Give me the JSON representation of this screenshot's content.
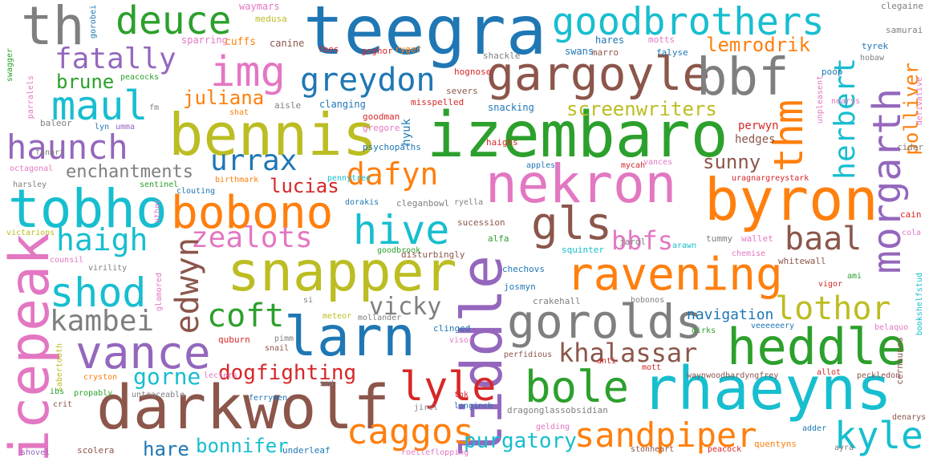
{
  "palette": [
    "#1f77b4",
    "#ff7f0e",
    "#2ca02c",
    "#d62728",
    "#9467bd",
    "#8c564b",
    "#e377c2",
    "#7f7f7f",
    "#bcbd22",
    "#17becf"
  ],
  "words": [
    {
      "text": "teegra",
      "color": "#1f77b4",
      "weight": 1.0
    },
    {
      "text": "izembaro",
      "color": "#2ca02c",
      "weight": 0.9
    },
    {
      "text": "bennis",
      "color": "#bcbd22",
      "weight": 0.9
    },
    {
      "text": "goodbrothers",
      "color": "#17becf",
      "weight": 0.8
    },
    {
      "text": "nekron",
      "color": "#e377c2",
      "weight": 0.85
    },
    {
      "text": "byron",
      "color": "#ff7f0e",
      "weight": 0.85
    },
    {
      "text": "rhaeyns",
      "color": "#17becf",
      "weight": 0.85
    },
    {
      "text": "darkwolf",
      "color": "#8c564b",
      "weight": 0.85
    },
    {
      "text": "snapper",
      "color": "#bcbd22",
      "weight": 0.85
    },
    {
      "text": "larn",
      "color": "#1f77b4",
      "weight": 0.8
    },
    {
      "text": "liddle",
      "color": "#9467bd",
      "weight": 0.8
    },
    {
      "text": "icepeak",
      "color": "#e377c2",
      "weight": 0.8
    },
    {
      "text": "tobho",
      "color": "#17becf",
      "weight": 0.75
    },
    {
      "text": "gargoyle",
      "color": "#8c564b",
      "weight": 0.7
    },
    {
      "text": "bbf",
      "color": "#7f7f7f",
      "weight": 0.75
    },
    {
      "text": "th",
      "color": "#7f7f7f",
      "weight": 0.75
    },
    {
      "text": "heddle",
      "color": "#2ca02c",
      "weight": 0.75
    },
    {
      "text": "ravening",
      "color": "#ff7f0e",
      "weight": 0.75
    },
    {
      "text": "gorolds",
      "color": "#7f7f7f",
      "weight": 0.75
    },
    {
      "text": "bobono",
      "color": "#ff7f0e",
      "weight": 0.7
    },
    {
      "text": "vance",
      "color": "#9467bd",
      "weight": 0.7
    },
    {
      "text": "bole",
      "color": "#2ca02c",
      "weight": 0.7
    },
    {
      "text": "gls",
      "color": "#8c564b",
      "weight": 0.7
    },
    {
      "text": "morgarth",
      "color": "#9467bd",
      "weight": 0.7
    },
    {
      "text": "img",
      "color": "#e377c2",
      "weight": 0.65
    },
    {
      "text": "maul",
      "color": "#17becf",
      "weight": 0.65
    },
    {
      "text": "shod",
      "color": "#17becf",
      "weight": 0.65
    },
    {
      "text": "deuce",
      "color": "#2ca02c",
      "weight": 0.6
    },
    {
      "text": "greydon",
      "color": "#1f77b4",
      "weight": 0.55
    },
    {
      "text": "haunch",
      "color": "#9467bd",
      "weight": 0.55
    },
    {
      "text": "thm",
      "color": "#ff7f0e",
      "weight": 0.6
    },
    {
      "text": "hive",
      "color": "#17becf",
      "weight": 0.6
    },
    {
      "text": "caggos",
      "color": "#ff7f0e",
      "weight": 0.55
    },
    {
      "text": "lyle",
      "color": "#d62728",
      "weight": 0.6
    },
    {
      "text": "sandpiper",
      "color": "#ff7f0e",
      "weight": 0.55
    },
    {
      "text": "kyle",
      "color": "#17becf",
      "weight": 0.55
    },
    {
      "text": "fatally",
      "color": "#9467bd",
      "weight": 0.5
    },
    {
      "text": "dafyn",
      "color": "#ff7f0e",
      "weight": 0.5
    },
    {
      "text": "urrax",
      "color": "#1f77b4",
      "weight": 0.5
    },
    {
      "text": "zealots",
      "color": "#e377c2",
      "weight": 0.5
    },
    {
      "text": "haigh",
      "color": "#17becf",
      "weight": 0.5
    },
    {
      "text": "kambei",
      "color": "#7f7f7f",
      "weight": 0.5
    },
    {
      "text": "coft",
      "color": "#2ca02c",
      "weight": 0.5
    },
    {
      "text": "lothor",
      "color": "#bcbd22",
      "weight": 0.5
    },
    {
      "text": "baal",
      "color": "#8c564b",
      "weight": 0.5
    },
    {
      "text": "edwyn",
      "color": "#8c564b",
      "weight": 0.5
    },
    {
      "text": "herbert",
      "color": "#17becf",
      "weight": 0.5
    },
    {
      "text": "khalassar",
      "color": "#8c564b",
      "weight": 0.45
    },
    {
      "text": "vicky",
      "color": "#7f7f7f",
      "weight": 0.45
    },
    {
      "text": "bbfs",
      "color": "#e377c2",
      "weight": 0.45
    },
    {
      "text": "dogfighting",
      "color": "#d62728",
      "weight": 0.4
    },
    {
      "text": "purgatory",
      "color": "#17becf",
      "weight": 0.4
    },
    {
      "text": "bonnifer",
      "color": "#17becf",
      "weight": 0.4
    },
    {
      "text": "hare",
      "color": "#1f77b4",
      "weight": 0.4
    },
    {
      "text": "gorne",
      "color": "#17becf",
      "weight": 0.4
    },
    {
      "text": "lemrodrik",
      "color": "#ff7f0e",
      "weight": 0.4
    },
    {
      "text": "juliana",
      "color": "#ff7f0e",
      "weight": 0.4
    },
    {
      "text": "brune",
      "color": "#2ca02c",
      "weight": 0.4
    },
    {
      "text": "enchantments",
      "color": "#7f7f7f",
      "weight": 0.4
    },
    {
      "text": "screenwriters",
      "color": "#bcbd22",
      "weight": 0.4
    },
    {
      "text": "lucias",
      "color": "#d62728",
      "weight": 0.4
    },
    {
      "text": "sunny",
      "color": "#8c564b",
      "weight": 0.35
    },
    {
      "text": "polliver",
      "color": "#ff7f0e",
      "weight": 0.35
    },
    {
      "text": "navigation",
      "color": "#1f77b4",
      "weight": 0.35
    },
    {
      "text": "hedges",
      "color": "#8c564b",
      "weight": 0.25
    },
    {
      "text": "perwyn",
      "color": "#d62728",
      "weight": 0.25
    },
    {
      "text": "hyuk",
      "color": "#1f77b4",
      "weight": 0.25
    },
    {
      "text": "waymars",
      "color": "#e377c2",
      "weight": 0.2
    },
    {
      "text": "medusa",
      "color": "#bcbd22",
      "weight": 0.2
    },
    {
      "text": "sparring",
      "color": "#e377c2",
      "weight": 0.2
    },
    {
      "text": "cuffs",
      "color": "#ff7f0e",
      "weight": 0.2
    },
    {
      "text": "canine",
      "color": "#8c564b",
      "weight": 0.2
    },
    {
      "text": "fees",
      "color": "#d62728",
      "weight": 0.2
    },
    {
      "text": "goghor",
      "color": "#d62728",
      "weight": 0.2
    },
    {
      "text": "ryger",
      "color": "#ff7f0e",
      "weight": 0.2
    },
    {
      "text": "hares",
      "color": "#1f77b4",
      "weight": 0.2
    },
    {
      "text": "motts",
      "color": "#e377c2",
      "weight": 0.2
    },
    {
      "text": "swans",
      "color": "#1f77b4",
      "weight": 0.2
    },
    {
      "text": "marro",
      "color": "#8c564b",
      "weight": 0.2
    },
    {
      "text": "falyse",
      "color": "#1f77b4",
      "weight": 0.2
    },
    {
      "text": "shackle",
      "color": "#7f7f7f",
      "weight": 0.2
    },
    {
      "text": "hognose",
      "color": "#d62728",
      "weight": 0.2
    },
    {
      "text": "severs",
      "color": "#8c564b",
      "weight": 0.2
    },
    {
      "text": "misspelled",
      "color": "#d62728",
      "weight": 0.2
    },
    {
      "text": "clanging",
      "color": "#1f77b4",
      "weight": 0.2
    },
    {
      "text": "snacking",
      "color": "#1f77b4",
      "weight": 0.2
    },
    {
      "text": "aisle",
      "color": "#7f7f7f",
      "weight": 0.2
    },
    {
      "text": "shat",
      "color": "#ff7f0e",
      "weight": 0.2
    },
    {
      "text": "goodman",
      "color": "#d62728",
      "weight": 0.2
    },
    {
      "text": "gregore",
      "color": "#e377c2",
      "weight": 0.2
    },
    {
      "text": "psychopaths",
      "color": "#1f77b4",
      "weight": 0.2
    },
    {
      "text": "haighs",
      "color": "#d62728",
      "weight": 0.2
    },
    {
      "text": "apples",
      "color": "#1f77b4",
      "weight": 0.2
    },
    {
      "text": "mycah",
      "color": "#d62728",
      "weight": 0.2
    },
    {
      "text": "vances",
      "color": "#e377c2",
      "weight": 0.2
    },
    {
      "text": "clegaine",
      "color": "#7f7f7f",
      "weight": 0.2
    },
    {
      "text": "samurai",
      "color": "#7f7f7f",
      "weight": 0.2
    },
    {
      "text": "tyrek",
      "color": "#1f77b4",
      "weight": 0.2
    },
    {
      "text": "hobaw",
      "color": "#7f7f7f",
      "weight": 0.2
    },
    {
      "text": "poop",
      "color": "#1f77b4",
      "weight": 0.2
    },
    {
      "text": "nearys",
      "color": "#e377c2",
      "weight": 0.2
    },
    {
      "text": "cider",
      "color": "#7f7f7f",
      "weight": 0.2
    },
    {
      "text": "uragnargreystark",
      "color": "#d62728",
      "weight": 0.2
    },
    {
      "text": "unpleasent",
      "color": "#e377c2",
      "weight": 0.2
    },
    {
      "text": "derivative",
      "color": "#e377c2",
      "weight": 0.2
    },
    {
      "text": "gorobei",
      "color": "#1f77b4",
      "weight": 0.2
    },
    {
      "text": "swagger",
      "color": "#2ca02c",
      "weight": 0.2
    },
    {
      "text": "parralels",
      "color": "#e377c2",
      "weight": 0.2
    },
    {
      "text": "peacocks",
      "color": "#2ca02c",
      "weight": 0.2
    },
    {
      "text": "fm",
      "color": "#7f7f7f",
      "weight": 0.2
    },
    {
      "text": "baleor",
      "color": "#7f7f7f",
      "weight": 0.2
    },
    {
      "text": "lyn",
      "color": "#1f77b4",
      "weight": 0.2
    },
    {
      "text": "umma",
      "color": "#9467bd",
      "weight": 0.2
    },
    {
      "text": "fanart",
      "color": "#7f7f7f",
      "weight": 0.2
    },
    {
      "text": "octagonal",
      "color": "#e377c2",
      "weight": 0.2
    },
    {
      "text": "harsley",
      "color": "#7f7f7f",
      "weight": 0.2
    },
    {
      "text": "sentinel",
      "color": "#2ca02c",
      "weight": 0.2
    },
    {
      "text": "pennytree",
      "color": "#17becf",
      "weight": 0.2
    },
    {
      "text": "birthmark",
      "color": "#ff7f0e",
      "weight": 0.2
    },
    {
      "text": "clouting",
      "color": "#1f77b4",
      "weight": 0.2
    },
    {
      "text": "dorakis",
      "color": "#1f77b4",
      "weight": 0.2
    },
    {
      "text": "ryella",
      "color": "#7f7f7f",
      "weight": 0.2
    },
    {
      "text": "cleganbowl",
      "color": "#7f7f7f",
      "weight": 0.2
    },
    {
      "text": "uthor",
      "color": "#e377c2",
      "weight": 0.2
    },
    {
      "text": "victarions",
      "color": "#bcbd22",
      "weight": 0.2
    },
    {
      "text": "counsil",
      "color": "#e377c2",
      "weight": 0.2
    },
    {
      "text": "virility",
      "color": "#7f7f7f",
      "weight": 0.2
    },
    {
      "text": "glamored",
      "color": "#e377c2",
      "weight": 0.2
    },
    {
      "text": "sucession",
      "color": "#8c564b",
      "weight": 0.2
    },
    {
      "text": "alfa",
      "color": "#2ca02c",
      "weight": 0.2
    },
    {
      "text": "goodbrook",
      "color": "#2ca02c",
      "weight": 0.2
    },
    {
      "text": "disturbingly",
      "color": "#8c564b",
      "weight": 0.2
    },
    {
      "text": "squinter",
      "color": "#17becf",
      "weight": 0.2
    },
    {
      "text": "jarol",
      "color": "#7f7f7f",
      "weight": 0.2
    },
    {
      "text": "arawn",
      "color": "#17becf",
      "weight": 0.2
    },
    {
      "text": "tummy",
      "color": "#7f7f7f",
      "weight": 0.2
    },
    {
      "text": "wallet",
      "color": "#e377c2",
      "weight": 0.2
    },
    {
      "text": "cain",
      "color": "#d62728",
      "weight": 0.2
    },
    {
      "text": "cola",
      "color": "#e377c2",
      "weight": 0.2
    },
    {
      "text": "chemise",
      "color": "#e377c2",
      "weight": 0.2
    },
    {
      "text": "whitewall",
      "color": "#8c564b",
      "weight": 0.2
    },
    {
      "text": "ami",
      "color": "#2ca02c",
      "weight": 0.2
    },
    {
      "text": "vigor",
      "color": "#d62728",
      "weight": 0.2
    },
    {
      "text": "bookshelfstud",
      "color": "#17becf",
      "weight": 0.2
    },
    {
      "text": "chechovs",
      "color": "#1f77b4",
      "weight": 0.2
    },
    {
      "text": "josmyn",
      "color": "#1f77b4",
      "weight": 0.2
    },
    {
      "text": "si",
      "color": "#7f7f7f",
      "weight": 0.2
    },
    {
      "text": "crakehall",
      "color": "#7f7f7f",
      "weight": 0.2
    },
    {
      "text": "bobonos",
      "color": "#7f7f7f",
      "weight": 0.2
    },
    {
      "text": "meteor",
      "color": "#bcbd22",
      "weight": 0.2
    },
    {
      "text": "mollander",
      "color": "#7f7f7f",
      "weight": 0.2
    },
    {
      "text": "dirks",
      "color": "#2ca02c",
      "weight": 0.2
    },
    {
      "text": "veeeeeery",
      "color": "#1f77b4",
      "weight": 0.2
    },
    {
      "text": "belaquo",
      "color": "#e377c2",
      "weight": 0.2
    },
    {
      "text": "quburn",
      "color": "#d62728",
      "weight": 0.2
    },
    {
      "text": "pimm",
      "color": "#7f7f7f",
      "weight": 0.2
    },
    {
      "text": "snail",
      "color": "#8c564b",
      "weight": 0.2
    },
    {
      "text": "clinged",
      "color": "#1f77b4",
      "weight": 0.2
    },
    {
      "text": "visor",
      "color": "#e377c2",
      "weight": 0.2
    },
    {
      "text": "perfidious",
      "color": "#8c564b",
      "weight": 0.2
    },
    {
      "text": "anti",
      "color": "#d62728",
      "weight": 0.2
    },
    {
      "text": "mott",
      "color": "#d62728",
      "weight": 0.2
    },
    {
      "text": "waynwoodhardyngfrey",
      "color": "#8c564b",
      "weight": 0.2
    },
    {
      "text": "allot",
      "color": "#d62728",
      "weight": 0.2
    },
    {
      "text": "cernnunos",
      "color": "#8c564b",
      "weight": 0.2
    },
    {
      "text": "peckledon",
      "color": "#8c564b",
      "weight": 0.2
    },
    {
      "text": "sabertooth",
      "color": "#bcbd22",
      "weight": 0.2
    },
    {
      "text": "cryston",
      "color": "#ff7f0e",
      "weight": 0.2
    },
    {
      "text": "lecters",
      "color": "#e377c2",
      "weight": 0.2
    },
    {
      "text": "sod",
      "color": "#7f7f7f",
      "weight": 0.2
    },
    {
      "text": "propably",
      "color": "#2ca02c",
      "weight": 0.2
    },
    {
      "text": "untraceable",
      "color": "#7f7f7f",
      "weight": 0.2
    },
    {
      "text": "ibs",
      "color": "#2ca02c",
      "weight": 0.2
    },
    {
      "text": "crit",
      "color": "#8c564b",
      "weight": 0.2
    },
    {
      "text": "ferrymen",
      "color": "#1f77b4",
      "weight": 0.2
    },
    {
      "text": "jirel",
      "color": "#7f7f7f",
      "weight": 0.2
    },
    {
      "text": "longinch",
      "color": "#1f77b4",
      "weight": 0.2
    },
    {
      "text": "tnk",
      "color": "#d62728",
      "weight": 0.2
    },
    {
      "text": "dragonglassobsidian",
      "color": "#7f7f7f",
      "weight": 0.2
    },
    {
      "text": "gelding",
      "color": "#e377c2",
      "weight": 0.2
    },
    {
      "text": "adder",
      "color": "#1f77b4",
      "weight": 0.2
    },
    {
      "text": "denarys",
      "color": "#8c564b",
      "weight": 0.2
    },
    {
      "text": "ayra",
      "color": "#7f7f7f",
      "weight": 0.2
    },
    {
      "text": "shovel",
      "color": "#9467bd",
      "weight": 0.2
    },
    {
      "text": "scolera",
      "color": "#8c564b",
      "weight": 0.2
    },
    {
      "text": "underleaf",
      "color": "#1f77b4",
      "weight": 0.2
    },
    {
      "text": "roelleflopping",
      "color": "#e377c2",
      "weight": 0.2
    },
    {
      "text": "stonheart",
      "color": "#8c564b",
      "weight": 0.2
    },
    {
      "text": "peacock",
      "color": "#d62728",
      "weight": 0.2
    },
    {
      "text": "quentyns",
      "color": "#ff7f0e",
      "weight": 0.2
    }
  ]
}
